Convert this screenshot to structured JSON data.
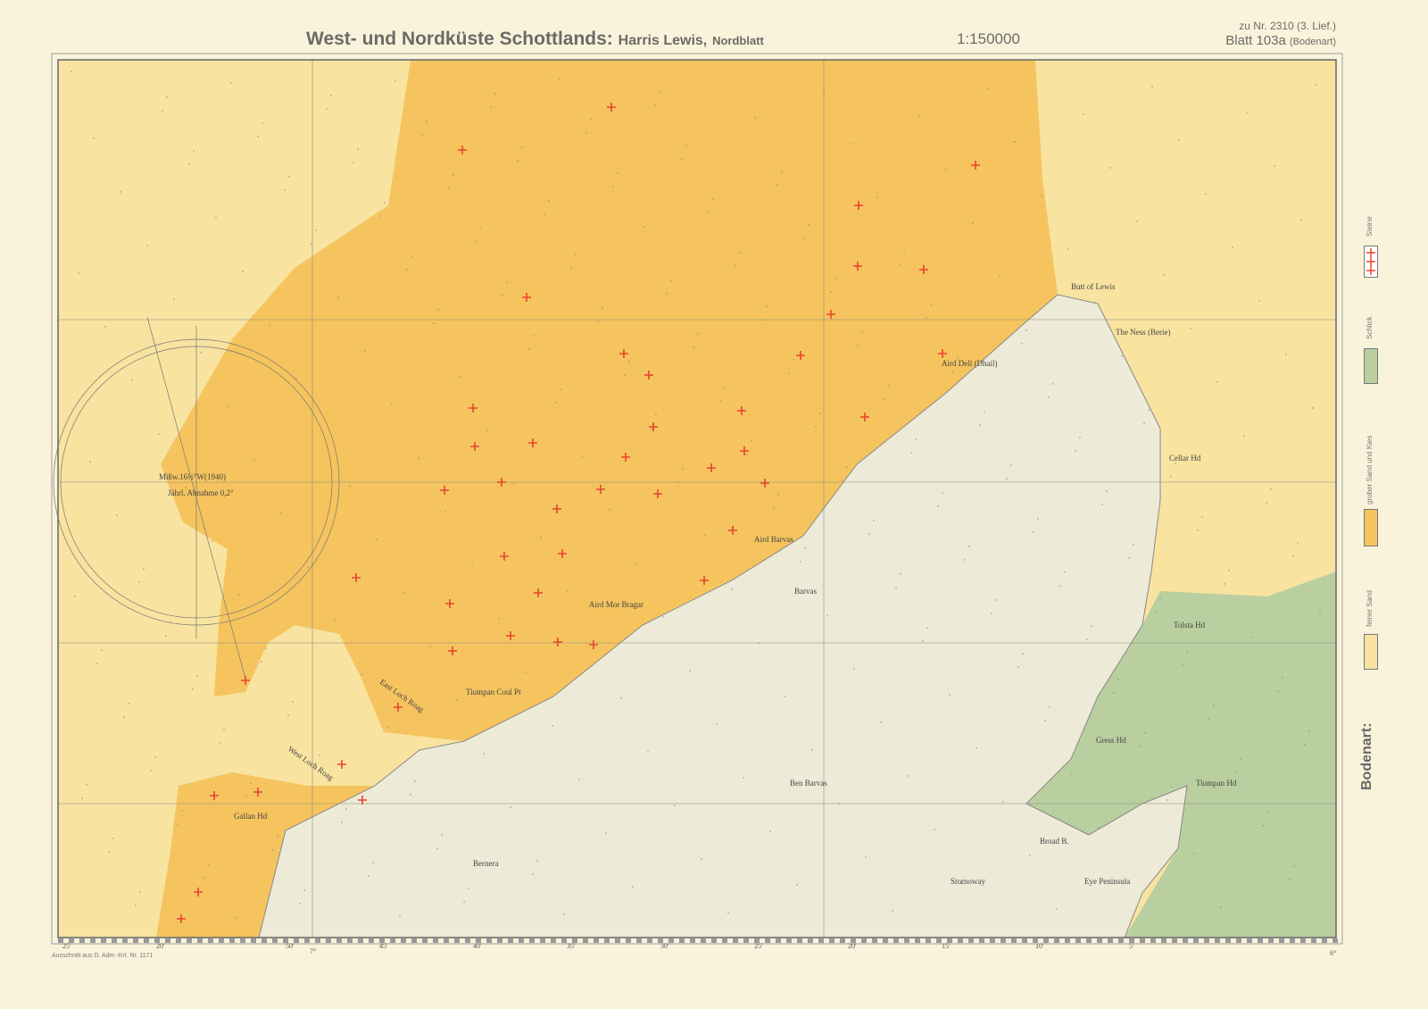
{
  "header": {
    "title_main": "West- und Nordküste Schottlands:",
    "title_region": "Harris Lewis,",
    "title_sheet": "Nordblatt",
    "scale": "1:150000",
    "ref_line1": "zu Nr. 2310 (3. Lief.)",
    "ref_line2": "Blatt 103a",
    "ref_line2_sub": "(Bodenart)"
  },
  "legend": {
    "title": "Bodenart:",
    "items": [
      {
        "label": "Steine",
        "color": "#e8432f",
        "symbol": "red-cross"
      },
      {
        "label": "Schlick",
        "color": "#b9cf9f"
      },
      {
        "label": "grober Sand und Kies",
        "color": "#f5c45e"
      },
      {
        "label": "feiner Sand",
        "color": "#f8e3a0"
      }
    ]
  },
  "colors": {
    "paper": "#faf3dc",
    "land": "#eeead8",
    "fine_sand": "#f8e3a0",
    "coarse_sand": "#f5c45e",
    "mud": "#b9cf9f",
    "stones": "#e8432f"
  },
  "places": {
    "butt": "Butt of Lewis",
    "ness": "The Ness (Berie)",
    "aird_dell": "Aird Dell (Dhail)",
    "barvas": "Barvas",
    "aird_barvas": "Aird Barvas",
    "aird_mor": "Aird Mor Bragar",
    "tiumpan_coul": "Tiumpan Coul Pt",
    "east_loch_roag": "East Loch Roag",
    "west_loch_roag": "West Loch Roag",
    "gallan": "Gallan Hd",
    "bernera": "Bernera",
    "cellar": "Cellar Hd",
    "tolsta": "Tolsta Hd",
    "gress": "Gress Hd",
    "tiumpan_hd": "Tiumpan Hd",
    "broad": "Broad B.",
    "eye": "Eye Peninsula",
    "stornoway": "Stornoway",
    "ben_barvas": "Ben Barvas",
    "compass_var": "Mißw.16½°W(1940)",
    "compass_dec": "Jährl. Abnahme 0,2°"
  },
  "ticks": {
    "lon_7": "7°",
    "lon_6": "6°",
    "lon_labels": [
      "25'",
      "20'",
      "50'",
      "45'",
      "40'",
      "35'",
      "30'",
      "25'",
      "20'",
      "15'",
      "10'",
      "5'"
    ]
  },
  "source": "Ausschnitt aus D. Adm.-Krt. Nr. 1171"
}
